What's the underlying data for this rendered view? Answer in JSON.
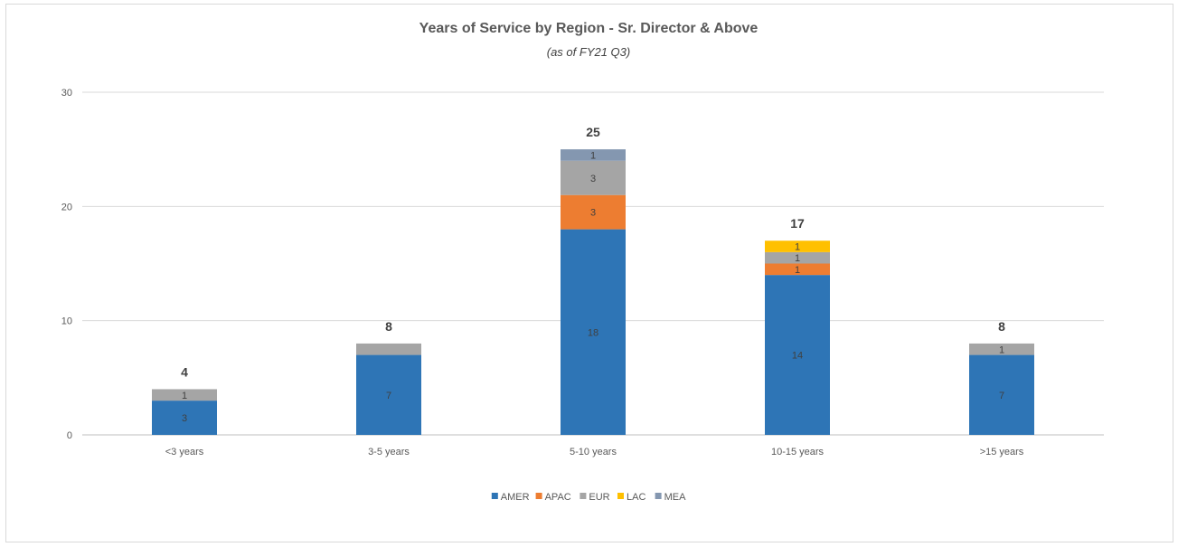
{
  "chart_data": {
    "type": "bar",
    "stacked": true,
    "title": "Years of Service by Region - Sr. Director & Above",
    "subtitle": "(as of FY21 Q3)",
    "categories": [
      "<3 years",
      "3-5 years",
      "5-10 years",
      "10-15 years",
      ">15 years"
    ],
    "series": [
      {
        "name": "AMER",
        "color": "#2e75b6",
        "values": [
          3,
          7,
          18,
          14,
          7
        ]
      },
      {
        "name": "APAC",
        "color": "#ed7d31",
        "values": [
          0,
          0,
          3,
          1,
          0
        ]
      },
      {
        "name": "EUR",
        "color": "#a5a5a5",
        "values": [
          1,
          1,
          3,
          1,
          1
        ]
      },
      {
        "name": "LAC",
        "color": "#ffc000",
        "values": [
          0,
          0,
          0,
          1,
          0
        ]
      },
      {
        "name": "MEA",
        "color": "#8497b0",
        "values": [
          0,
          0,
          1,
          0,
          0
        ]
      }
    ],
    "segment_labels": [
      [
        "3",
        "7",
        "18",
        "14",
        "7"
      ],
      [
        "",
        "",
        "3",
        "1",
        ""
      ],
      [
        "1",
        "",
        "3",
        "1",
        "1"
      ],
      [
        "",
        "",
        "",
        "1",
        ""
      ],
      [
        "",
        "",
        "1",
        "",
        ""
      ]
    ],
    "totals": [
      4,
      8,
      25,
      17,
      8
    ],
    "ylim": [
      0,
      30
    ],
    "yticks": [
      0,
      10,
      20,
      30
    ],
    "grid": true,
    "legend_position": "bottom"
  }
}
